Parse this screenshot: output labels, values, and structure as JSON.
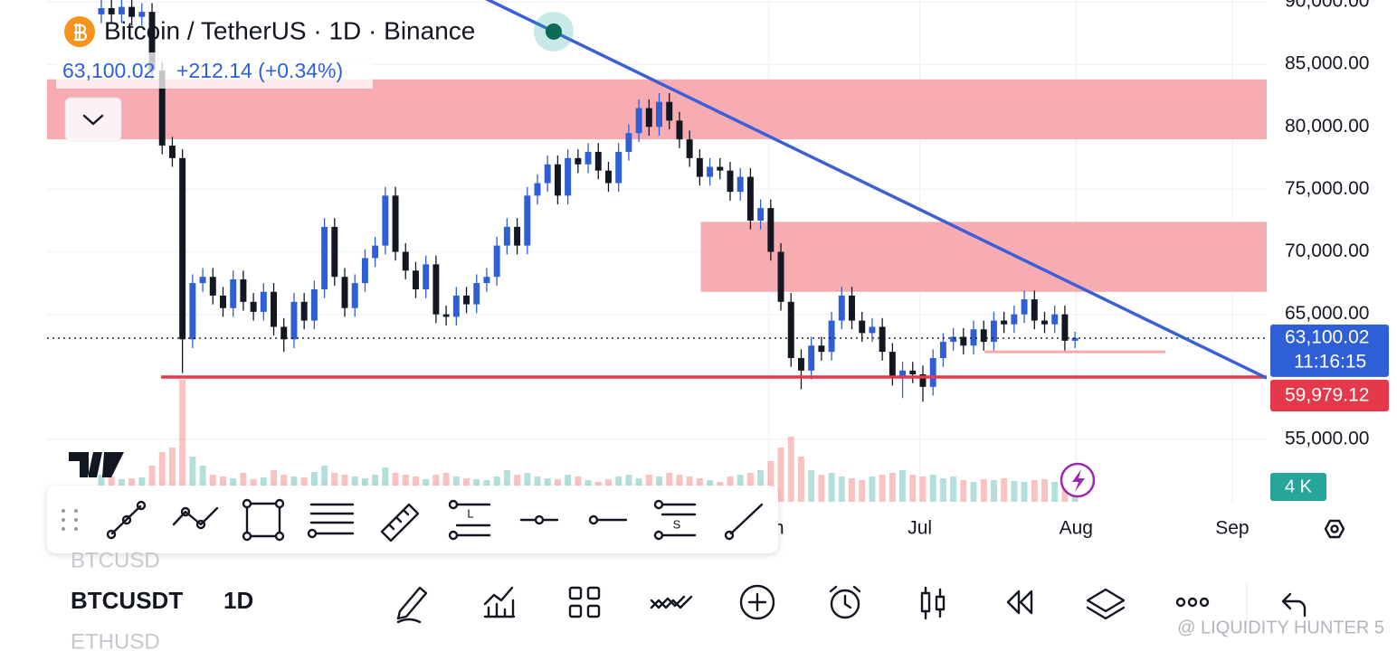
{
  "chart_data": {
    "type": "candlestick",
    "title": "Bitcoin / TetherUS · 1D · Binance",
    "change_label": "+212.14 (+0.34%)",
    "open": [
      89000,
      89500,
      89000,
      89600,
      88800,
      89200,
      84500,
      78500,
      77500,
      63000,
      67500,
      68000,
      66500,
      65500,
      67800,
      66000,
      65200,
      66800,
      64000,
      63000,
      66000,
      64500,
      67000,
      72000,
      68000,
      65500,
      67500,
      69500,
      70500,
      74500,
      70000,
      68500,
      67000,
      69000,
      65000,
      64800,
      66500,
      65800,
      67500,
      68000,
      70500,
      72000,
      70500,
      74500,
      75500,
      77000,
      74500,
      77500,
      77000,
      78000,
      76500,
      75500,
      78000,
      79500,
      81500,
      80000,
      82000,
      80500,
      79000,
      77500,
      76000,
      76800,
      76500,
      74800,
      76000,
      72500,
      73500,
      70000,
      66000,
      61500,
      60500,
      62500,
      62000,
      64500,
      66500,
      64500,
      63500,
      64000,
      62000,
      60000,
      60500,
      60200,
      59200,
      61500,
      62800,
      63200,
      62500,
      63800,
      62800,
      64500,
      64200,
      65000,
      66200,
      64500,
      64200,
      65000,
      62887.88
    ],
    "high": [
      90200,
      90200,
      90300,
      90300,
      89900,
      89900,
      85200,
      79200,
      78200,
      68200,
      68700,
      68700,
      67200,
      68500,
      68500,
      66700,
      67500,
      67500,
      64700,
      66700,
      66700,
      67700,
      72700,
      72700,
      68700,
      68200,
      70200,
      71200,
      75200,
      75200,
      70700,
      69200,
      69700,
      69700,
      65700,
      67200,
      67200,
      68200,
      68700,
      71200,
      72700,
      72700,
      75200,
      76200,
      77700,
      77700,
      78200,
      78200,
      78700,
      78700,
      77200,
      78700,
      80200,
      82200,
      82200,
      82700,
      82700,
      81200,
      79700,
      78200,
      77500,
      77500,
      77200,
      76700,
      76700,
      74200,
      74200,
      70700,
      66700,
      62200,
      63200,
      63200,
      65200,
      67200,
      67200,
      65200,
      64700,
      64700,
      62700,
      61200,
      61200,
      60900,
      62200,
      63500,
      63900,
      63900,
      64500,
      64500,
      65200,
      65200,
      65700,
      66900,
      66900,
      65200,
      65700,
      65700,
      63600
    ],
    "low": [
      88300,
      88300,
      88300,
      88100,
      88100,
      83800,
      77800,
      76800,
      60300,
      62300,
      66800,
      65800,
      64800,
      64800,
      65300,
      64500,
      64500,
      63300,
      62000,
      62300,
      63800,
      63800,
      66300,
      67300,
      64800,
      64800,
      66800,
      68800,
      69800,
      69300,
      67800,
      66300,
      66300,
      64300,
      64100,
      64100,
      65100,
      65100,
      66800,
      67300,
      69800,
      69800,
      69800,
      73800,
      74800,
      73800,
      73800,
      76300,
      76300,
      75800,
      74800,
      74800,
      77300,
      78800,
      79300,
      79300,
      79800,
      78300,
      76800,
      75300,
      75300,
      75800,
      74100,
      74100,
      71800,
      71800,
      69300,
      65300,
      60800,
      59000,
      59800,
      61300,
      61300,
      63800,
      63800,
      62800,
      62800,
      61300,
      59300,
      58300,
      59500,
      58000,
      58500,
      60800,
      62100,
      61800,
      61800,
      62100,
      62100,
      63500,
      63500,
      64300,
      63800,
      63500,
      63500,
      62100,
      62300
    ],
    "close": [
      89500,
      89000,
      89600,
      88800,
      89200,
      84500,
      78500,
      77500,
      63000,
      67500,
      68000,
      66500,
      65500,
      67800,
      66000,
      65200,
      66800,
      64000,
      63000,
      66000,
      64500,
      67000,
      72000,
      68000,
      65500,
      67500,
      69500,
      70500,
      74500,
      70000,
      68500,
      67000,
      69000,
      65000,
      64800,
      66500,
      65800,
      67500,
      68000,
      70500,
      72000,
      70500,
      74500,
      75500,
      77000,
      74500,
      77500,
      77000,
      78000,
      76500,
      75500,
      78000,
      79500,
      81500,
      80000,
      82000,
      80500,
      79000,
      77500,
      76000,
      76800,
      76500,
      74800,
      76000,
      72500,
      73500,
      70000,
      66000,
      61500,
      60500,
      62500,
      62000,
      64500,
      66500,
      64500,
      63500,
      64000,
      62000,
      60000,
      60500,
      60200,
      59200,
      61500,
      62800,
      63200,
      62500,
      63800,
      62800,
      64500,
      64200,
      65000,
      66200,
      64500,
      64200,
      65000,
      62887.88,
      63100.02
    ],
    "volume": [
      30,
      28,
      25,
      26,
      27,
      40,
      55,
      60,
      135,
      50,
      40,
      30,
      28,
      26,
      32,
      25,
      27,
      35,
      30,
      28,
      27,
      33,
      40,
      32,
      30,
      28,
      26,
      30,
      38,
      32,
      30,
      28,
      25,
      30,
      32,
      28,
      26,
      25,
      24,
      28,
      35,
      30,
      32,
      28,
      26,
      25,
      30,
      28,
      24,
      22,
      25,
      28,
      30,
      26,
      30,
      28,
      32,
      30,
      28,
      26,
      24,
      22,
      28,
      30,
      32,
      35,
      45,
      60,
      72,
      50,
      35,
      30,
      32,
      28,
      26,
      24,
      28,
      30,
      32,
      35,
      30,
      28,
      30,
      26,
      28,
      24,
      22,
      25,
      24,
      26,
      23,
      22,
      24,
      25,
      22,
      20,
      18
    ],
    "volume_lim": [
      0,
      160
    ],
    "up_color": "#2f5fd7",
    "down_color": "#131722",
    "xlim": [
      -5.35,
      114.9
    ],
    "xticks": [
      {
        "value": 65.8,
        "label": "Jun"
      },
      {
        "value": 80.7,
        "label": "Jul"
      },
      {
        "value": 96.1,
        "label": "Aug"
      },
      {
        "value": 111.5,
        "label": "Sep"
      }
    ],
    "ylim": [
      50000,
      90150
    ],
    "yticks": [
      {
        "value": 55000,
        "label": "55,000.00"
      },
      {
        "value": 65000,
        "label": "65,000.00"
      },
      {
        "value": 70000,
        "label": "70,000.00"
      },
      {
        "value": 75000,
        "label": "75,000.00"
      },
      {
        "value": 80000,
        "label": "80,000.00"
      },
      {
        "value": 85000,
        "label": "85,000.00"
      },
      {
        "value": 90000,
        "label": "90,000.00"
      }
    ],
    "grid": true,
    "zones": [
      {
        "top": 83800,
        "bottom": 79000,
        "start": -5.35
      },
      {
        "top": 72400,
        "bottom": 66800,
        "start": 59.1
      }
    ],
    "zone_color": "#f7a8ad",
    "trendline": {
      "x": [
        44.6,
        114.9
      ],
      "y": [
        87620,
        59900
      ],
      "color": "#3b5fd9"
    },
    "support": {
      "value": 59979.12,
      "label": "59,979.12",
      "start": 5.9,
      "color": "#e5384a"
    },
    "minor_line": {
      "value": 62000,
      "start": 87.1,
      "end": 104.9
    },
    "last_price": {
      "value": 63100.02,
      "label": "63,100.02",
      "countdown": "11:16:15"
    },
    "badge": "4 K"
  },
  "ui": {
    "symbols": [
      "BTCUSD",
      "BTCUSDT",
      "ETHUSD"
    ],
    "interval": "1D",
    "drawing_tool_letters": [
      "L",
      "S"
    ],
    "watermark": "@ LIQUIDITY HUNTER 5"
  }
}
